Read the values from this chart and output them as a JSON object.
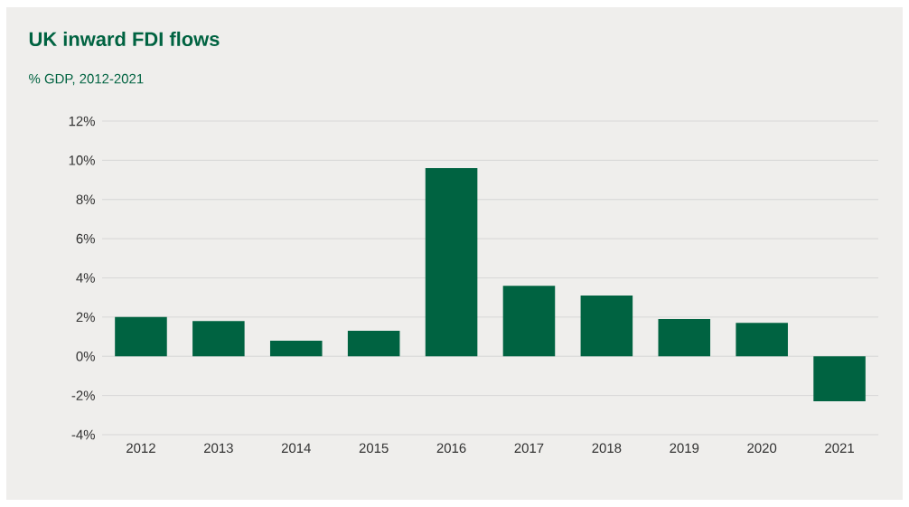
{
  "chart_data": {
    "type": "bar",
    "title": "UK inward FDI flows",
    "subtitle": "% GDP, 2012-2021",
    "categories": [
      "2012",
      "2013",
      "2014",
      "2015",
      "2016",
      "2017",
      "2018",
      "2019",
      "2020",
      "2021"
    ],
    "values": [
      2.0,
      1.8,
      0.8,
      1.3,
      9.6,
      3.6,
      3.1,
      1.9,
      1.7,
      -2.3
    ],
    "color": "#006341",
    "ylim": [
      -4,
      12
    ],
    "yticks": [
      {
        "value": -4,
        "label": "-4%"
      },
      {
        "value": -2,
        "label": "-2%"
      },
      {
        "value": 0,
        "label": "0%"
      },
      {
        "value": 2,
        "label": "2%"
      },
      {
        "value": 4,
        "label": "4%"
      },
      {
        "value": 6,
        "label": "6%"
      },
      {
        "value": 8,
        "label": "8%"
      },
      {
        "value": 10,
        "label": "10%"
      },
      {
        "value": 12,
        "label": "12%"
      }
    ],
    "grid": "y"
  }
}
